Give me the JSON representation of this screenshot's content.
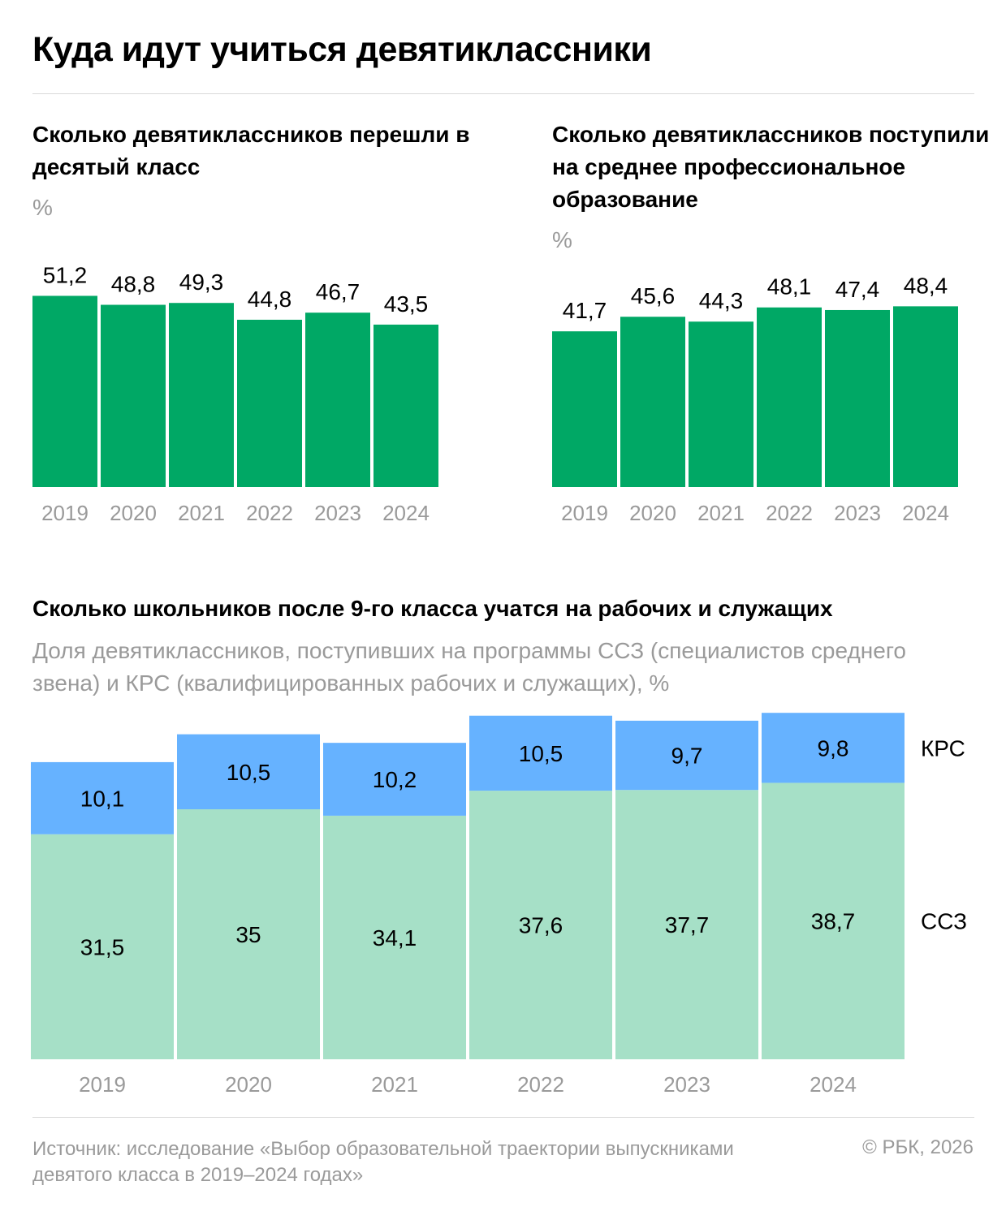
{
  "page": {
    "title": "Куда идут учиться девятиклассники"
  },
  "colors": {
    "bar_green": "#00a865",
    "kpc_blue": "#66b2ff",
    "ssz_mint": "#a6e0c7",
    "axis_gray": "#9a9a9a"
  },
  "footer": {
    "source": "Источник: исследование «Выбор образовательной траектории выпускниками девятого класса в 2019–2024 годах»",
    "copyright": "© РБК, 2026"
  },
  "chart_data": [
    {
      "id": "tenth-grade",
      "type": "bar",
      "title": "Сколько девятиклассников перешли в десятый класс",
      "unit": "%",
      "categories": [
        "2019",
        "2020",
        "2021",
        "2022",
        "2023",
        "2024"
      ],
      "values": [
        51.2,
        48.8,
        49.3,
        44.8,
        46.7,
        43.5
      ],
      "value_labels": [
        "51,2",
        "48,8",
        "49,3",
        "44,8",
        "46,7",
        "43,5"
      ]
    },
    {
      "id": "spo",
      "type": "bar",
      "title": "Сколько девятиклассников поступили на среднее профессиональное образование",
      "unit": "%",
      "categories": [
        "2019",
        "2020",
        "2021",
        "2022",
        "2023",
        "2024"
      ],
      "values": [
        41.7,
        45.6,
        44.3,
        48.1,
        47.4,
        48.4
      ],
      "value_labels": [
        "41,7",
        "45,6",
        "44,3",
        "48,1",
        "47,4",
        "48,4"
      ]
    },
    {
      "id": "kpc-ssz",
      "type": "bar",
      "stacked": true,
      "title": "Сколько школьников после 9-го класса учатся на рабочих и служащих",
      "subtitle": "Доля девятиклассников, поступивших на программы ССЗ (специалистов среднего звена) и КРС (квалифицированных рабочих и служащих), %",
      "categories": [
        "2019",
        "2020",
        "2021",
        "2022",
        "2023",
        "2024"
      ],
      "series": [
        {
          "name": "ССЗ",
          "values": [
            31.5,
            35,
            34.1,
            37.6,
            37.7,
            38.7
          ],
          "labels": [
            "31,5",
            "35",
            "34,1",
            "37,6",
            "37,7",
            "38,7"
          ]
        },
        {
          "name": "КРС",
          "values": [
            10.1,
            10.5,
            10.2,
            10.5,
            9.7,
            9.8
          ],
          "labels": [
            "10,1",
            "10,5",
            "10,2",
            "10,5",
            "9,7",
            "9,8"
          ]
        }
      ]
    }
  ]
}
